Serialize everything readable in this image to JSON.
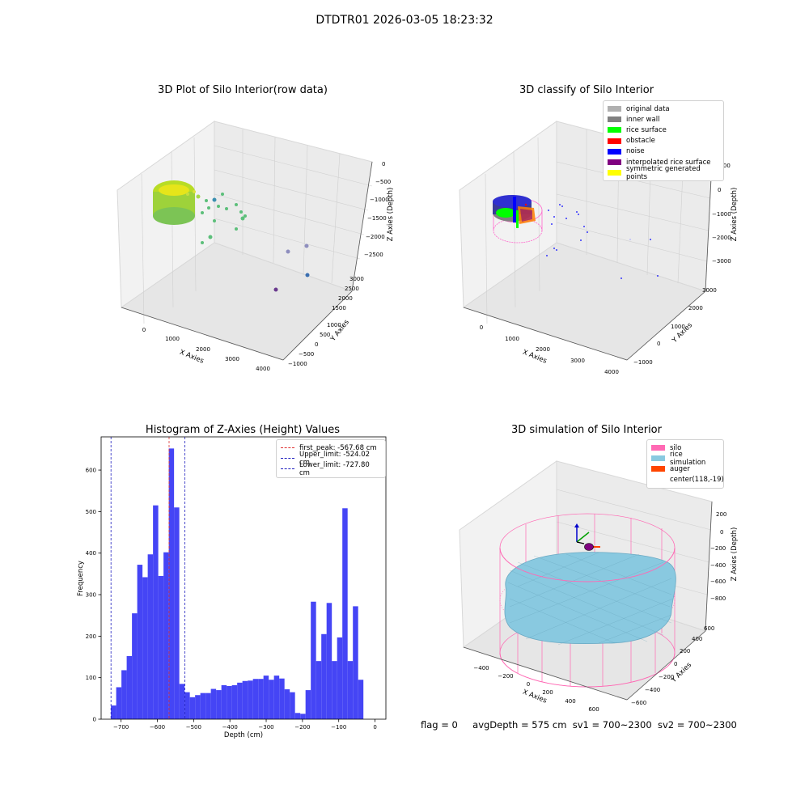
{
  "suptitle": "DTDTR01 2026-03-05 18:23:32",
  "colors": {
    "hist_bar": "#4545f5",
    "first_peak": "#e03030",
    "limit": "#2020c0",
    "silo": "#ff69b4",
    "rice": "#89c9e0",
    "auger": "#ff4500",
    "gray": "#b0b0b0",
    "inner_wall": "#808080",
    "rice_surface": "#00ff00",
    "obstacle": "#ff0000",
    "noise": "#0000ff",
    "interp": "#800080",
    "sym": "#ffff00"
  },
  "panels": {
    "raw": {
      "title": "3D Plot of Silo Interior(row data)",
      "xlabel": "X Axies",
      "ylabel": "Y Axies",
      "zlabel": "Z Axies (Depth)",
      "xticks": [
        "0",
        "1000",
        "2000",
        "3000",
        "4000"
      ],
      "yticks": [
        "−1000",
        "−500",
        "0",
        "500",
        "1000",
        "1500",
        "2000",
        "2500",
        "3000"
      ],
      "zticks": [
        "0",
        "−500",
        "−1000",
        "−1500",
        "−2000",
        "−2500"
      ]
    },
    "classify": {
      "title": "3D classify of Silo Interior",
      "xlabel": "X Axies",
      "ylabel": "Y Axies",
      "zlabel": "Z Axies (Depth)",
      "xticks": [
        "0",
        "1000",
        "2000",
        "3000",
        "4000"
      ],
      "yticks": [
        "−1000",
        "0",
        "1000",
        "2000",
        "3000"
      ],
      "zticks": [
        "1000",
        "0",
        "−1000",
        "−2000",
        "−3000"
      ],
      "legend": [
        {
          "label": "original data",
          "color": "#b0b0b0"
        },
        {
          "label": "inner wall",
          "color": "#808080"
        },
        {
          "label": "rice surface",
          "color": "#00ff00"
        },
        {
          "label": "obstacle",
          "color": "#ff0000"
        },
        {
          "label": "noise",
          "color": "#0000ff"
        },
        {
          "label": "interpolated rice surface",
          "color": "#800080"
        },
        {
          "label": "symmetric generated points",
          "color": "#ffff00"
        }
      ]
    },
    "simulation": {
      "title": "3D simulation of Silo Interior",
      "xlabel": "X Axies",
      "ylabel": "Y Axies",
      "zlabel": "Z Axies (Depth)",
      "xticks": [
        "−400",
        "−200",
        "0",
        "200",
        "400",
        "600"
      ],
      "yticks": [
        "−600",
        "−400",
        "−200",
        "0",
        "200",
        "400",
        "600"
      ],
      "zticks": [
        "200",
        "0",
        "−200",
        "−400",
        "−600",
        "−800"
      ],
      "legend": [
        {
          "label": "silo",
          "color": "#ff69b4"
        },
        {
          "label": "rice simulation",
          "color": "#89c9e0"
        },
        {
          "label": "auger",
          "color": "#ff4500"
        },
        {
          "label": "center(118,-19)",
          "color": ""
        }
      ]
    }
  },
  "footer": {
    "flag": "flag = 0",
    "avg": "avgDepth = 575 cm",
    "sv1": "sv1 = 700~2300",
    "sv2": "sv2 = 700~2300"
  },
  "chart_data": {
    "type": "bar",
    "title": "Histogram of Z-Axies (Height) Values",
    "xlabel": "Depth (cm)",
    "ylabel": "Frequency",
    "xlim": [
      -755,
      30
    ],
    "ylim": [
      0,
      680
    ],
    "xticks": [
      -700,
      -600,
      -500,
      -400,
      -300,
      -200,
      -100,
      0
    ],
    "yticks": [
      0,
      100,
      200,
      300,
      400,
      500,
      600
    ],
    "bin_start": -728,
    "bin_width": 14.5,
    "values": [
      33,
      77,
      118,
      152,
      255,
      372,
      342,
      397,
      515,
      345,
      402,
      652,
      510,
      85,
      65,
      53,
      58,
      63,
      63,
      73,
      70,
      82,
      80,
      82,
      88,
      92,
      93,
      97,
      97,
      105,
      95,
      105,
      98,
      72,
      65,
      15,
      13,
      70,
      283,
      140,
      205,
      280,
      140,
      197,
      508,
      140,
      272,
      95
    ],
    "lines": [
      {
        "name": "first_peak: -567.68 cm",
        "x": -567.68,
        "color": "#e03030"
      },
      {
        "name": "Upper_limit: -524.02 cm",
        "x": -524.02,
        "color": "#2020c0"
      },
      {
        "name": "Lower_limit: -727.80 cm",
        "x": -727.8,
        "color": "#2020c0"
      }
    ]
  }
}
